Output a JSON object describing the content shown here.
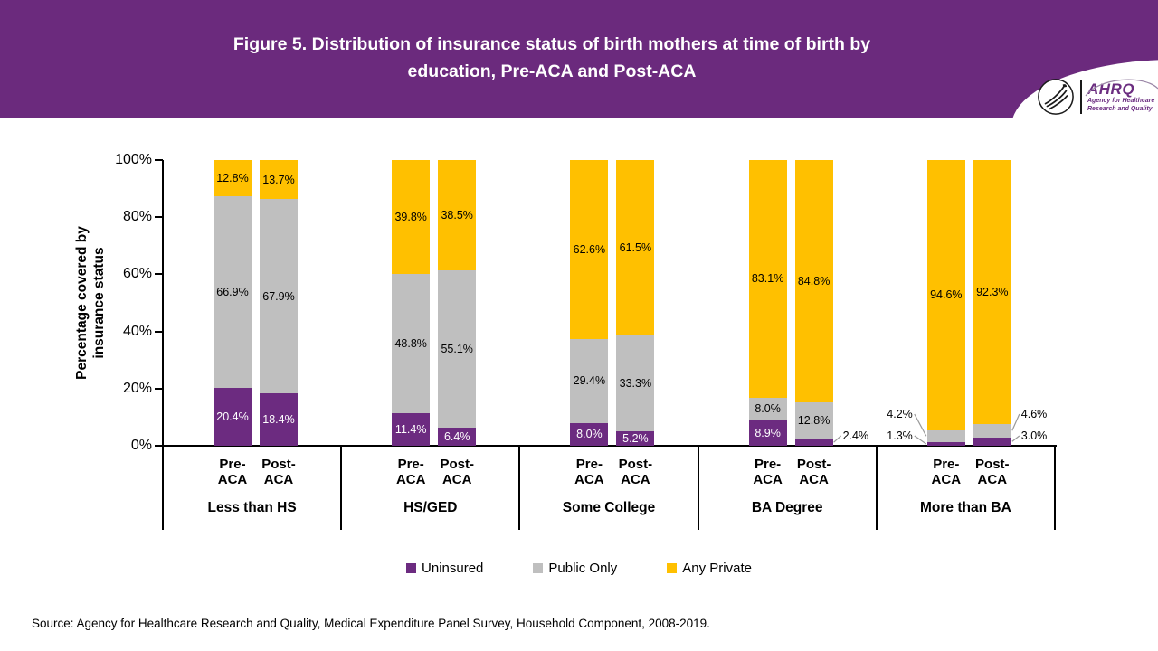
{
  "header": {
    "banner_color": "#6B2A7D",
    "title_lines": [
      "Figure 5. Distribution of insurance status of birth mothers at time of birth by",
      "education, Pre-ACA and Post-ACA"
    ],
    "logo": {
      "wordmark": "AHRQ",
      "tagline": [
        "Agency for Healthcare",
        "Research and Quality"
      ]
    }
  },
  "colors": {
    "uninsured": "#6C2B80",
    "public_only": "#BFBFBF",
    "any_private": "#FFC000",
    "axis": "#000000",
    "leader_line": "#999999"
  },
  "chart_data": {
    "type": "bar",
    "stacked": true,
    "title": "Figure 5. Distribution of insurance status of birth mothers at time of birth by education, Pre-ACA and Post-ACA",
    "ylabel": "Percentage covered by insurance status",
    "ylabel_lines": [
      "Percentage covered by",
      "insurance status"
    ],
    "ylim": [
      0,
      100
    ],
    "yticks": [
      0,
      20,
      40,
      60,
      80,
      100
    ],
    "ytick_labels": [
      "0%",
      "20%",
      "40%",
      "60%",
      "80%",
      "100%"
    ],
    "grid": false,
    "legend_position": "bottom",
    "categories": [
      "Less than HS",
      "HS/GED",
      "Some College",
      "BA Degree",
      "More than BA"
    ],
    "bar_sublabels": [
      [
        "Pre-",
        "ACA"
      ],
      [
        "Post-",
        "ACA"
      ]
    ],
    "series_names": [
      "Uninsured",
      "Public Only",
      "Any Private"
    ],
    "series_colors": {
      "Uninsured": "#6C2B80",
      "Public Only": "#BFBFBF",
      "Any Private": "#FFC000"
    },
    "groups": [
      {
        "category": "Less than HS",
        "bars": [
          {
            "name": "Pre-ACA",
            "segments": [
              {
                "series": "Uninsured",
                "value": 20.4,
                "label": "20.4%",
                "label_placement": "inside",
                "label_color": "#FFFFFF"
              },
              {
                "series": "Public Only",
                "value": 66.9,
                "label": "66.9%",
                "label_placement": "inside",
                "label_color": "#000000"
              },
              {
                "series": "Any Private",
                "value": 12.8,
                "label": "12.8%",
                "label_placement": "inside",
                "label_color": "#000000"
              }
            ]
          },
          {
            "name": "Post-ACA",
            "segments": [
              {
                "series": "Uninsured",
                "value": 18.4,
                "label": "18.4%",
                "label_placement": "inside",
                "label_color": "#FFFFFF"
              },
              {
                "series": "Public Only",
                "value": 67.9,
                "label": "67.9%",
                "label_placement": "inside",
                "label_color": "#000000"
              },
              {
                "series": "Any Private",
                "value": 13.7,
                "label": "13.7%",
                "label_placement": "inside",
                "label_color": "#000000"
              }
            ]
          }
        ]
      },
      {
        "category": "HS/GED",
        "bars": [
          {
            "name": "Pre-ACA",
            "segments": [
              {
                "series": "Uninsured",
                "value": 11.4,
                "label": "11.4%",
                "label_placement": "inside",
                "label_color": "#FFFFFF"
              },
              {
                "series": "Public Only",
                "value": 48.8,
                "label": "48.8%",
                "label_placement": "inside",
                "label_color": "#000000"
              },
              {
                "series": "Any Private",
                "value": 39.8,
                "label": "39.8%",
                "label_placement": "inside",
                "label_color": "#000000"
              }
            ]
          },
          {
            "name": "Post-ACA",
            "segments": [
              {
                "series": "Uninsured",
                "value": 6.4,
                "label": "6.4%",
                "label_placement": "inside",
                "label_color": "#FFFFFF"
              },
              {
                "series": "Public Only",
                "value": 55.1,
                "label": "55.1%",
                "label_placement": "inside",
                "label_color": "#000000"
              },
              {
                "series": "Any Private",
                "value": 38.5,
                "label": "38.5%",
                "label_placement": "inside",
                "label_color": "#000000"
              }
            ]
          }
        ]
      },
      {
        "category": "Some College",
        "bars": [
          {
            "name": "Pre-ACA",
            "segments": [
              {
                "series": "Uninsured",
                "value": 8.0,
                "label": "8.0%",
                "label_placement": "inside",
                "label_color": "#FFFFFF"
              },
              {
                "series": "Public Only",
                "value": 29.4,
                "label": "29.4%",
                "label_placement": "inside",
                "label_color": "#000000"
              },
              {
                "series": "Any Private",
                "value": 62.6,
                "label": "62.6%",
                "label_placement": "inside",
                "label_color": "#000000"
              }
            ]
          },
          {
            "name": "Post-ACA",
            "segments": [
              {
                "series": "Uninsured",
                "value": 5.2,
                "label": "5.2%",
                "label_placement": "inside",
                "label_color": "#FFFFFF"
              },
              {
                "series": "Public Only",
                "value": 33.3,
                "label": "33.3%",
                "label_placement": "inside",
                "label_color": "#000000"
              },
              {
                "series": "Any Private",
                "value": 61.5,
                "label": "61.5%",
                "label_placement": "inside",
                "label_color": "#000000"
              }
            ]
          }
        ]
      },
      {
        "category": "BA Degree",
        "bars": [
          {
            "name": "Pre-ACA",
            "segments": [
              {
                "series": "Uninsured",
                "value": 8.9,
                "label": "8.9%",
                "label_placement": "inside",
                "label_color": "#FFFFFF"
              },
              {
                "series": "Public Only",
                "value": 8.0,
                "label": "8.0%",
                "label_placement": "inside",
                "label_color": "#000000"
              },
              {
                "series": "Any Private",
                "value": 83.1,
                "label": "83.1%",
                "label_placement": "inside",
                "label_color": "#000000"
              }
            ]
          },
          {
            "name": "Post-ACA",
            "segments": [
              {
                "series": "Uninsured",
                "value": 2.4,
                "label": "2.4%",
                "label_placement": "callout-right",
                "callout_row": 0,
                "label_color": "#000000"
              },
              {
                "series": "Public Only",
                "value": 12.8,
                "label": "12.8%",
                "label_placement": "inside",
                "label_color": "#000000"
              },
              {
                "series": "Any Private",
                "value": 84.8,
                "label": "84.8%",
                "label_placement": "inside",
                "label_color": "#000000"
              }
            ]
          }
        ]
      },
      {
        "category": "More than BA",
        "bars": [
          {
            "name": "Pre-ACA",
            "segments": [
              {
                "series": "Uninsured",
                "value": 1.3,
                "label": "1.3%",
                "label_placement": "callout-left",
                "callout_row": 0,
                "label_color": "#000000"
              },
              {
                "series": "Public Only",
                "value": 4.2,
                "label": "4.2%",
                "label_placement": "callout-left",
                "callout_row": 1,
                "label_color": "#000000"
              },
              {
                "series": "Any Private",
                "value": 94.6,
                "label": "94.6%",
                "label_placement": "inside",
                "label_color": "#000000"
              }
            ]
          },
          {
            "name": "Post-ACA",
            "segments": [
              {
                "series": "Uninsured",
                "value": 3.0,
                "label": "3.0%",
                "label_placement": "callout-right",
                "callout_row": 0,
                "label_color": "#000000"
              },
              {
                "series": "Public Only",
                "value": 4.6,
                "label": "4.6%",
                "label_placement": "callout-right",
                "callout_row": 1,
                "label_color": "#000000"
              },
              {
                "series": "Any Private",
                "value": 92.3,
                "label": "92.3%",
                "label_placement": "inside",
                "label_color": "#000000"
              }
            ]
          }
        ]
      }
    ]
  },
  "legend": {
    "items": [
      {
        "label": "Uninsured",
        "color": "#6C2B80"
      },
      {
        "label": "Public Only",
        "color": "#BFBFBF"
      },
      {
        "label": "Any Private",
        "color": "#FFC000"
      }
    ]
  },
  "source": {
    "text": "Source: Agency for Healthcare Research and Quality, Medical Expenditure Panel Survey, Household Component, 2008-2019."
  }
}
